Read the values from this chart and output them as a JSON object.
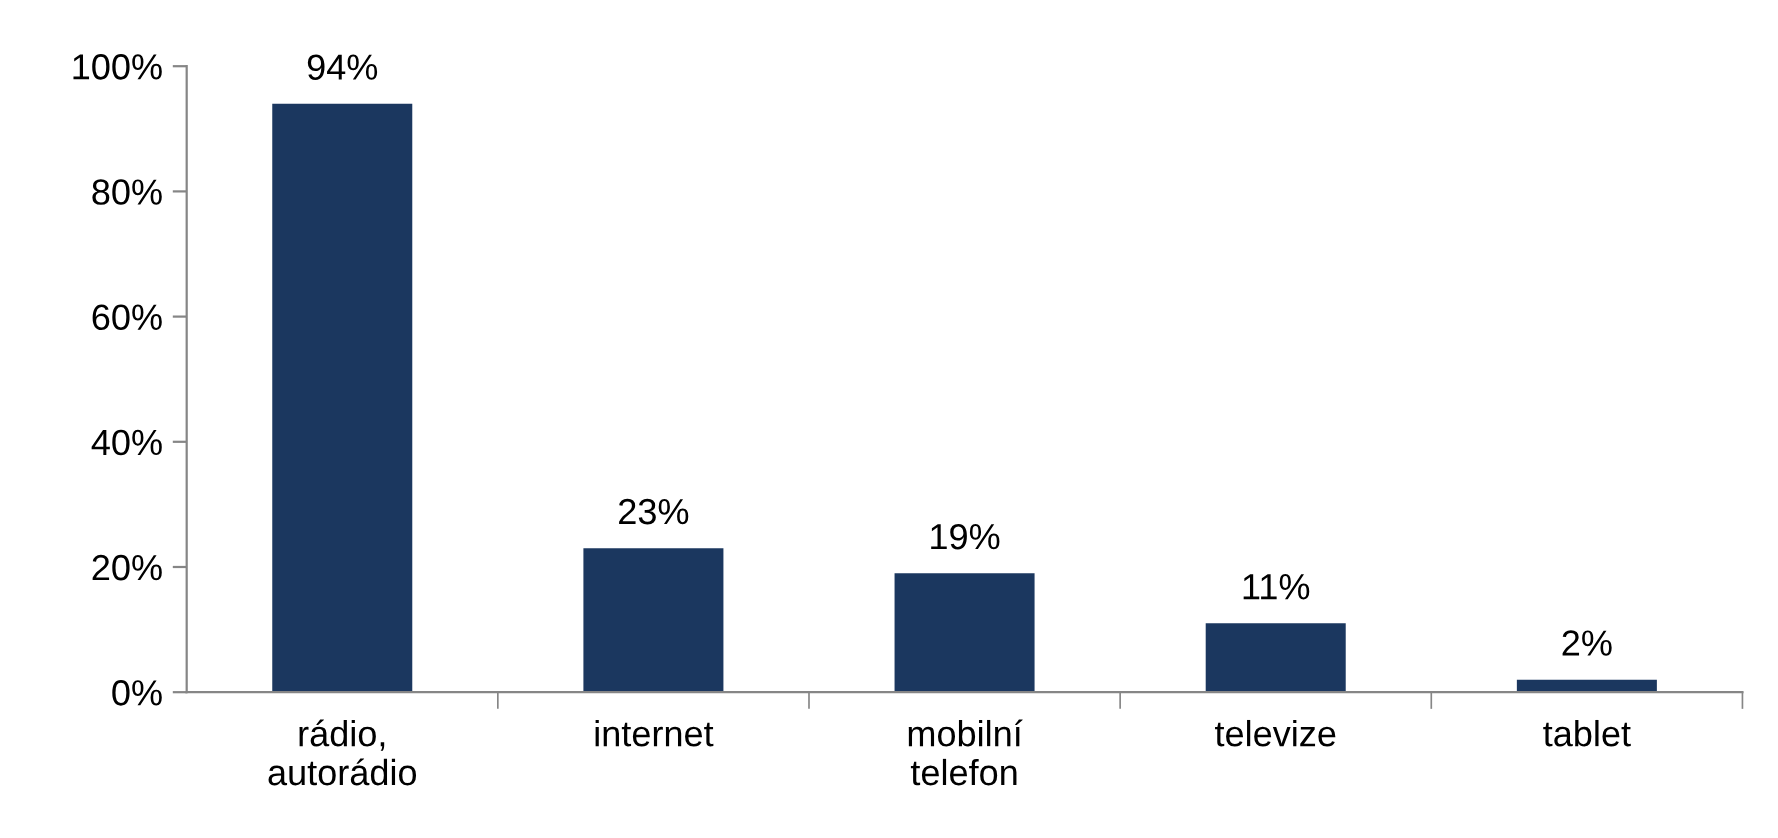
{
  "chart_data": {
    "type": "bar",
    "categories": [
      "rádio,\nautorádio",
      "internet",
      "mobilní\ntelefon",
      "televize",
      "tablet"
    ],
    "values": [
      94,
      23,
      19,
      11,
      2
    ],
    "value_labels": [
      "94%",
      "23%",
      "19%",
      "11%",
      "2%"
    ],
    "color": "#1b375f",
    "ylim": [
      0,
      100
    ],
    "yticks": [
      {
        "value": 0,
        "label": "0%"
      },
      {
        "value": 20,
        "label": "20%"
      },
      {
        "value": 40,
        "label": "40%"
      },
      {
        "value": 60,
        "label": "60%"
      },
      {
        "value": 80,
        "label": "80%"
      },
      {
        "value": 100,
        "label": "100%"
      }
    ],
    "grid": false,
    "legend": false
  }
}
